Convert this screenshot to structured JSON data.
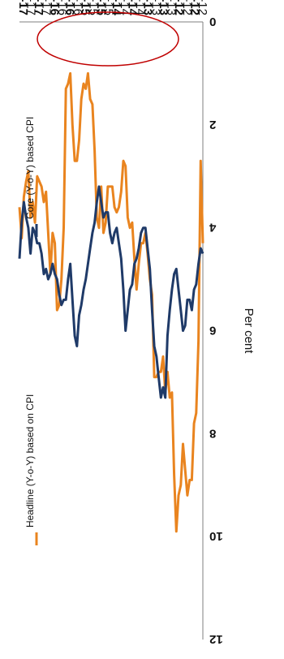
{
  "chart_data": {
    "type": "line",
    "title": "",
    "ylabel": "Per cent",
    "xlabel": "",
    "ylim": [
      0,
      12
    ],
    "y_ticks": [
      "0",
      "2",
      "4",
      "6",
      "8",
      "10",
      "12"
    ],
    "x_tick_labels": [
      "Jan-12",
      "Apr-12",
      "Jul-12",
      "Oct-12",
      "Jan-13",
      "Apr-13",
      "Jul-13",
      "Oct-13",
      "Jan-14",
      "Apr-14",
      "Jul-14",
      "Oct-14",
      "Jan-15",
      "Apr-15",
      "Jul-15",
      "Oct-15",
      "Jan-16",
      "Apr-16",
      "Jul-16",
      "Oct-16",
      "Jan-17",
      "Apr-17",
      "Jul-17",
      "Oct-17"
    ],
    "bold_tick_labels": [
      "Apr-12",
      "Oct-12",
      "Apr-13",
      "Oct-13",
      "Apr-14",
      "Oct-14",
      "Apr-15",
      "Oct-15",
      "Apr-16",
      "Oct-16",
      "Apr-17",
      "Oct-17"
    ],
    "orientation": "rotated 180 degrees",
    "grid": false,
    "legend_position": "bottom",
    "series": [
      {
        "name": "Headline (Y-o-Y) based on CPI",
        "color": "#E9841F",
        "values": [
          4.3,
          2.7,
          6.2,
          7.6,
          7.8,
          8.9,
          8.9,
          9.2,
          8.7,
          8.2,
          9.0,
          9.2,
          9.9,
          8.8,
          7.2,
          7.3,
          6.8,
          7.2,
          6.5,
          6.8,
          6.8,
          6.9,
          6.9,
          5.3,
          5.0,
          4.5,
          4.1,
          4.3,
          4.3,
          4.7,
          5.2,
          4.6,
          3.9,
          4.0,
          3.8,
          2.8,
          2.7,
          3.3,
          3.6,
          3.7,
          3.6,
          3.2,
          3.2,
          3.2,
          3.9,
          4.1,
          3.2,
          4.0,
          3.8,
          2.5,
          1.6,
          1.5,
          1.0,
          1.3,
          1.2,
          1.5,
          2.3,
          2.7,
          2.7,
          2.0,
          1.0,
          1.2,
          1.3,
          4.0,
          5.0,
          5.5,
          5.6,
          4.3,
          4.1,
          4.9,
          4.1,
          3.3,
          3.5,
          3.2,
          3.1,
          3.0,
          3.9,
          3.5,
          3.8,
          2.9,
          3.1,
          3.4,
          4.2,
          3.6
        ],
        "values_count_note": ""
      },
      {
        "name": "Core (Y-o-Y) based CPI",
        "color": "#1F3A68",
        "values": [
          4.5,
          4.4,
          4.7,
          5.1,
          5.2,
          5.6,
          5.4,
          5.4,
          5.9,
          6.0,
          5.6,
          5.2,
          4.8,
          4.9,
          5.2,
          5.6,
          6.1,
          7.3,
          7.1,
          7.3,
          6.9,
          6.5,
          6.3,
          5.6,
          4.8,
          4.4,
          4.0,
          4.0,
          4.1,
          4.4,
          4.6,
          4.7,
          5.1,
          5.2,
          5.6,
          6.0,
          5.2,
          4.6,
          4.3,
          4.0,
          4.1,
          4.3,
          4.1,
          3.7,
          3.7,
          3.8,
          3.5,
          3.2,
          3.5,
          3.9,
          4.1,
          4.4,
          4.7,
          5.0,
          5.2,
          5.5,
          5.7,
          6.3,
          6.1,
          5.4,
          4.7,
          5.0,
          5.4,
          5.4,
          5.5,
          5.3,
          5.0,
          4.9,
          4.7,
          4.9,
          5.0,
          4.8,
          4.9,
          4.5,
          4.3,
          4.3,
          4.1,
          4.0,
          4.5,
          4.0,
          3.8,
          3.5,
          3.9,
          4.6
        ],
        "values_count_note": ""
      }
    ]
  },
  "annotation": {
    "shape": "ellipse",
    "color": "#C00000"
  }
}
